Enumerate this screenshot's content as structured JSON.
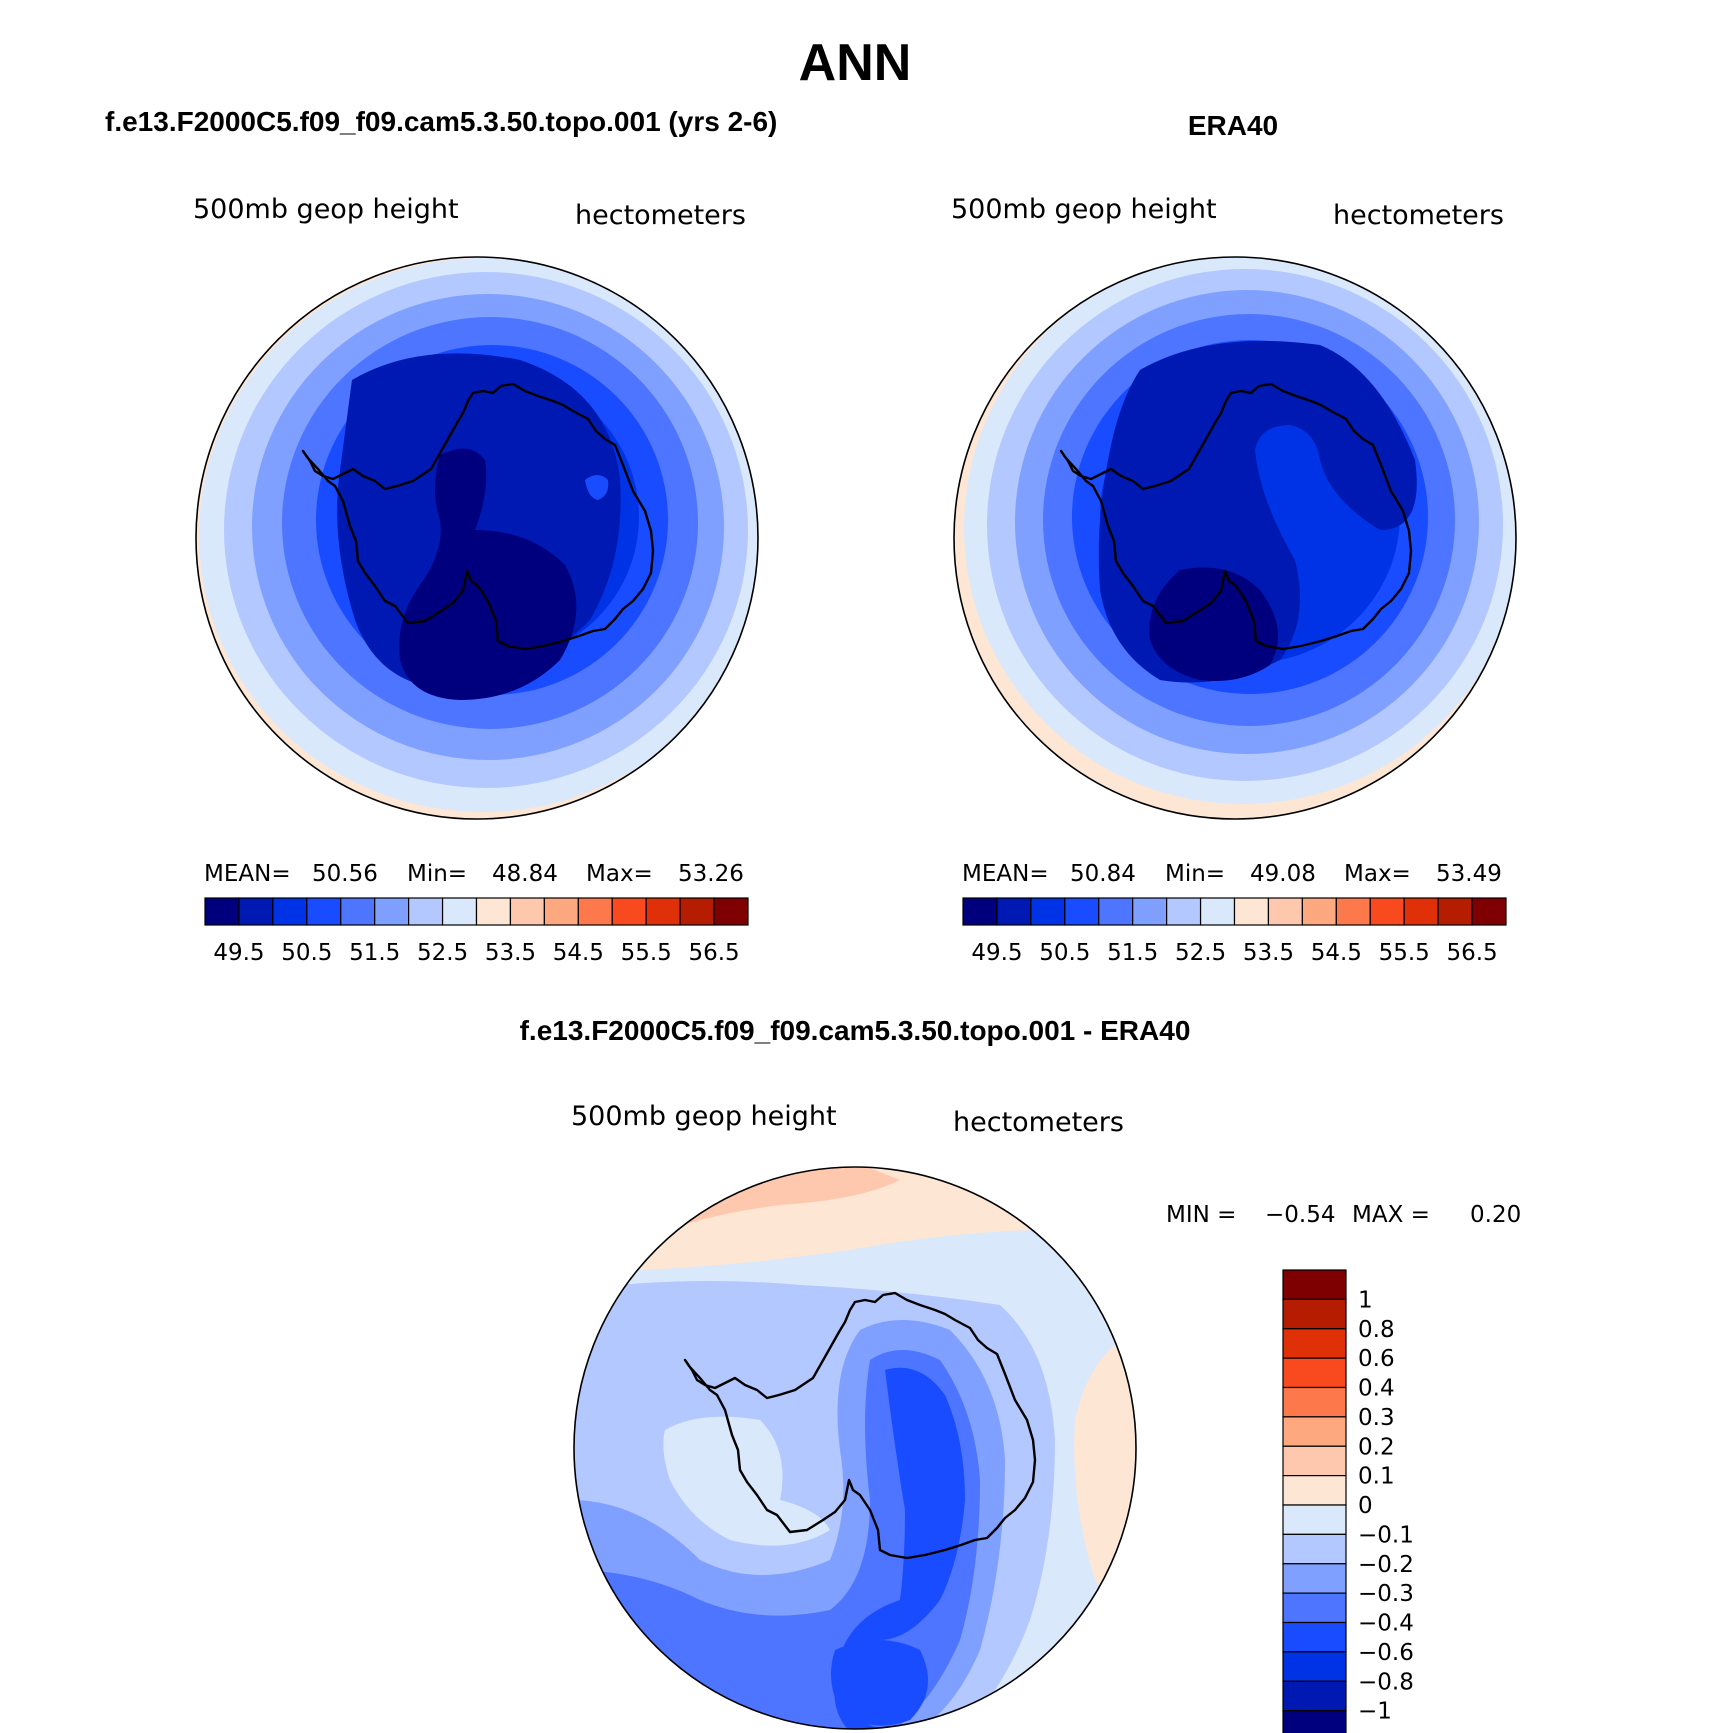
{
  "figure": {
    "title": "ANN"
  },
  "panels": [
    {
      "id": "model",
      "heading": "f.e13.F2000C5.f09_f09.cam5.3.50.topo.001 (yrs 2-6)",
      "variable": "500mb geop height",
      "units": "hectometers",
      "stats": {
        "mean_label": "MEAN=",
        "mean": "50.56",
        "min_label": "Min=",
        "min": "48.84",
        "max_label": "Max=",
        "max": "53.26"
      }
    },
    {
      "id": "obs",
      "heading": "ERA40",
      "variable": "500mb geop height",
      "units": "hectometers",
      "stats": {
        "mean_label": "MEAN=",
        "mean": "50.84",
        "min_label": "Min=",
        "min": "49.08",
        "max_label": "Max=",
        "max": "53.49"
      }
    },
    {
      "id": "diff",
      "heading": "f.e13.F2000C5.f09_f09.cam5.3.50.topo.001 - ERA40",
      "variable": "500mb geop height",
      "units": "hectometers",
      "stats": {
        "min_label": "MIN =",
        "min": "−0.54",
        "max_label": "MAX =",
        "max": "0.20"
      }
    }
  ],
  "colorbars": {
    "fields": {
      "colors": [
        "#00007f",
        "#0019b3",
        "#0033e6",
        "#1a4cff",
        "#4d75ff",
        "#7fa0ff",
        "#b3c8ff",
        "#dae8fc",
        "#fde6d4",
        "#fec8af",
        "#fda87f",
        "#fd784a",
        "#f94a1f",
        "#e03008",
        "#b51c00",
        "#7f0000"
      ],
      "tick_labels": [
        "49.5",
        "50.5",
        "51.5",
        "52.5",
        "53.5",
        "54.5",
        "55.5",
        "56.5"
      ]
    },
    "difference": {
      "colors": [
        "#00007f",
        "#0019b3",
        "#0033e6",
        "#1a4cff",
        "#4d75ff",
        "#7fa0ff",
        "#b3c8ff",
        "#dae8fc",
        "#fde6d4",
        "#fec8af",
        "#fda87f",
        "#fd784a",
        "#f94a1f",
        "#e03008",
        "#b51c00",
        "#7f0000"
      ],
      "tick_labels": [
        "1",
        "0.8",
        "0.6",
        "0.4",
        "0.3",
        "0.2",
        "0.1",
        "0",
        "−0.1",
        "−0.2",
        "−0.3",
        "−0.4",
        "−0.6",
        "−0.8",
        "−1"
      ]
    }
  }
}
